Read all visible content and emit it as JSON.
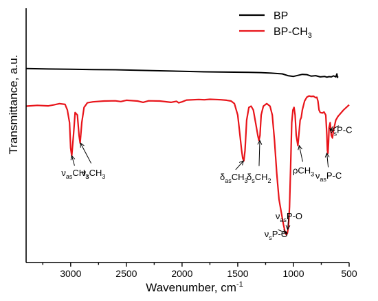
{
  "chart_data": {
    "type": "line",
    "xlabel": "Wavenumber, cm",
    "xlabel_sup": "-1",
    "ylabel": "Transmittance, a.u.",
    "xlim": [
      3400,
      500
    ],
    "xticks": [
      3000,
      2500,
      2000,
      1500,
      1000,
      500
    ],
    "ylim": [
      0,
      100
    ],
    "legend": "top-right",
    "series": [
      {
        "name": "BP",
        "color": "#000000",
        "x": [
          3400,
          3200,
          3000,
          2800,
          2600,
          2400,
          2200,
          2000,
          1800,
          1600,
          1400,
          1300,
          1200,
          1100,
          1050,
          1000,
          960,
          920,
          880,
          840,
          800,
          760,
          720,
          700,
          680,
          660,
          640,
          620,
          610,
          605,
          600
        ],
        "y": [
          76.3,
          76.1,
          76.0,
          75.9,
          75.8,
          75.6,
          75.4,
          75.2,
          75.0,
          74.9,
          74.8,
          74.7,
          74.5,
          74.2,
          73.5,
          73.2,
          73.6,
          74.0,
          73.9,
          73.3,
          73.5,
          73.0,
          73.2,
          72.9,
          73.1,
          73.0,
          73.4,
          73.0,
          74.2,
          72.8,
          73.2
        ]
      },
      {
        "name": "BP-CH",
        "name_sub": "3",
        "color": "#e8141a",
        "x": [
          3400,
          3300,
          3200,
          3150,
          3100,
          3050,
          3030,
          3010,
          3000,
          2990,
          2975,
          2960,
          2940,
          2925,
          2915,
          2900,
          2880,
          2850,
          2800,
          2700,
          2600,
          2550,
          2500,
          2400,
          2350,
          2300,
          2200,
          2100,
          2050,
          2030,
          2000,
          1960,
          1900,
          1850,
          1800,
          1750,
          1700,
          1650,
          1600,
          1560,
          1530,
          1500,
          1480,
          1465,
          1455,
          1445,
          1435,
          1420,
          1400,
          1380,
          1360,
          1340,
          1320,
          1310,
          1300,
          1290,
          1270,
          1240,
          1210,
          1190,
          1170,
          1150,
          1130,
          1110,
          1090,
          1075,
          1065,
          1055,
          1045,
          1035,
          1025,
          1015,
          1005,
          995,
          985,
          975,
          960,
          950,
          940,
          930,
          920,
          900,
          880,
          860,
          840,
          820,
          800,
          790,
          780,
          770,
          760,
          740,
          725,
          710,
          700,
          695,
          690,
          685,
          680,
          670,
          660,
          650,
          640,
          620,
          600,
          550,
          500
        ],
        "y": [
          61.5,
          61.8,
          61.6,
          62.0,
          62.5,
          62.2,
          60.0,
          55.0,
          45.0,
          42.0,
          50.0,
          59.0,
          58.0,
          50.0,
          47.0,
          55.0,
          61.0,
          62.8,
          63.2,
          63.5,
          63.6,
          63.3,
          63.8,
          63.5,
          63.0,
          63.6,
          63.5,
          63.0,
          63.4,
          62.8,
          63.2,
          63.9,
          64.0,
          64.1,
          64.0,
          64.2,
          64.1,
          64.0,
          63.8,
          63.5,
          62.5,
          58.0,
          50.0,
          44.0,
          41.0,
          40.0,
          44.0,
          56.0,
          61.0,
          61.5,
          60.0,
          55.0,
          50.0,
          48.0,
          50.0,
          58.0,
          61.5,
          62.5,
          61.5,
          58.0,
          48.0,
          35.0,
          25.0,
          20.0,
          15.0,
          12.0,
          11.0,
          11.5,
          14.0,
          22.0,
          38.0,
          55.0,
          60.0,
          61.0,
          58.0,
          50.0,
          46.0,
          51.0,
          56.0,
          57.0,
          60.0,
          63.5,
          65.0,
          65.5,
          65.3,
          65.4,
          64.8,
          65.0,
          63.5,
          60.0,
          59.0,
          58.8,
          59.2,
          58.0,
          50.0,
          44.0,
          43.0,
          47.0,
          53.0,
          55.0,
          50.0,
          49.0,
          52.0,
          56.0,
          57.5,
          60.0,
          62.0
        ]
      }
    ],
    "annotations": [
      {
        "main": "ν",
        "sub": "as",
        "rest": "CH",
        "sub2": "3",
        "tx": 2960,
        "ty": 34.0,
        "ax": 2990,
        "ay": 42.0
      },
      {
        "main": "ν",
        "sub": "s",
        "rest": "CH",
        "sub2": "3",
        "tx": 2795,
        "ty": 34.0,
        "ax": 2912,
        "ay": 47.0
      },
      {
        "main": "δ",
        "sub": "as",
        "rest": "CH",
        "sub2": "3",
        "tx": 1535,
        "ty": 32.5,
        "ax": 1448,
        "ay": 40.0
      },
      {
        "main": "δ",
        "sub": "s",
        "rest": "CH",
        "sub2": "2",
        "tx": 1310,
        "ty": 32.5,
        "ax": 1302,
        "ay": 48.0
      },
      {
        "main": "ρ",
        "sub": "",
        "rest": "CH",
        "sub2": "3",
        "tx": 910,
        "ty": 35.0,
        "ax": 948,
        "ay": 46.0
      },
      {
        "main": "ν",
        "sub": "as",
        "rest": "P-C",
        "sub2": "",
        "tx": 685,
        "ty": 33.0,
        "ax": 700,
        "ay": 43.0
      },
      {
        "main": "ν",
        "sub": "s",
        "rest": "P-C",
        "sub2": "",
        "tx": 575,
        "ty": 51.0,
        "ax": 670,
        "ay": 52.0
      },
      {
        "main": "ν",
        "sub": "as",
        "rest": "P-O",
        "sub2": "",
        "tx": 1040,
        "ty": 17.0,
        "ax": 1052,
        "ay": 13.0
      },
      {
        "main": "ν",
        "sub": "s",
        "rest": "P-O",
        "sub2": "",
        "tx": 1155,
        "ty": 10.0,
        "ax": 1062,
        "ay": 11.5
      }
    ]
  }
}
